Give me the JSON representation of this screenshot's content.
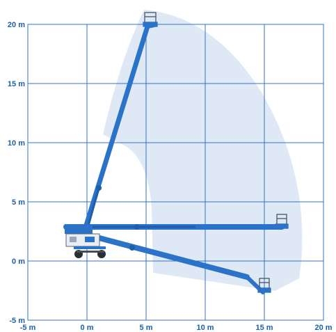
{
  "chart": {
    "x_ticks": [
      {
        "value": -5,
        "label": "-5 m"
      },
      {
        "value": 0,
        "label": "0 m"
      },
      {
        "value": 5,
        "label": "5 m"
      },
      {
        "value": 10,
        "label": "10 m"
      },
      {
        "value": 15,
        "label": "15 m"
      },
      {
        "value": 20,
        "label": "20 m"
      }
    ],
    "y_ticks": [
      {
        "value": -5,
        "label": "-5 m"
      },
      {
        "value": 0,
        "label": "0 m"
      },
      {
        "value": 5,
        "label": "5 m"
      },
      {
        "value": 10,
        "label": "10 m"
      },
      {
        "value": 15,
        "label": "15 m"
      },
      {
        "value": 20,
        "label": "20 m"
      }
    ],
    "colors": {
      "grid": "#2f73c4",
      "envelope": "#dfe9f6",
      "boom": "#2b73c8",
      "tick_text": "#1d5fa8"
    }
  }
}
